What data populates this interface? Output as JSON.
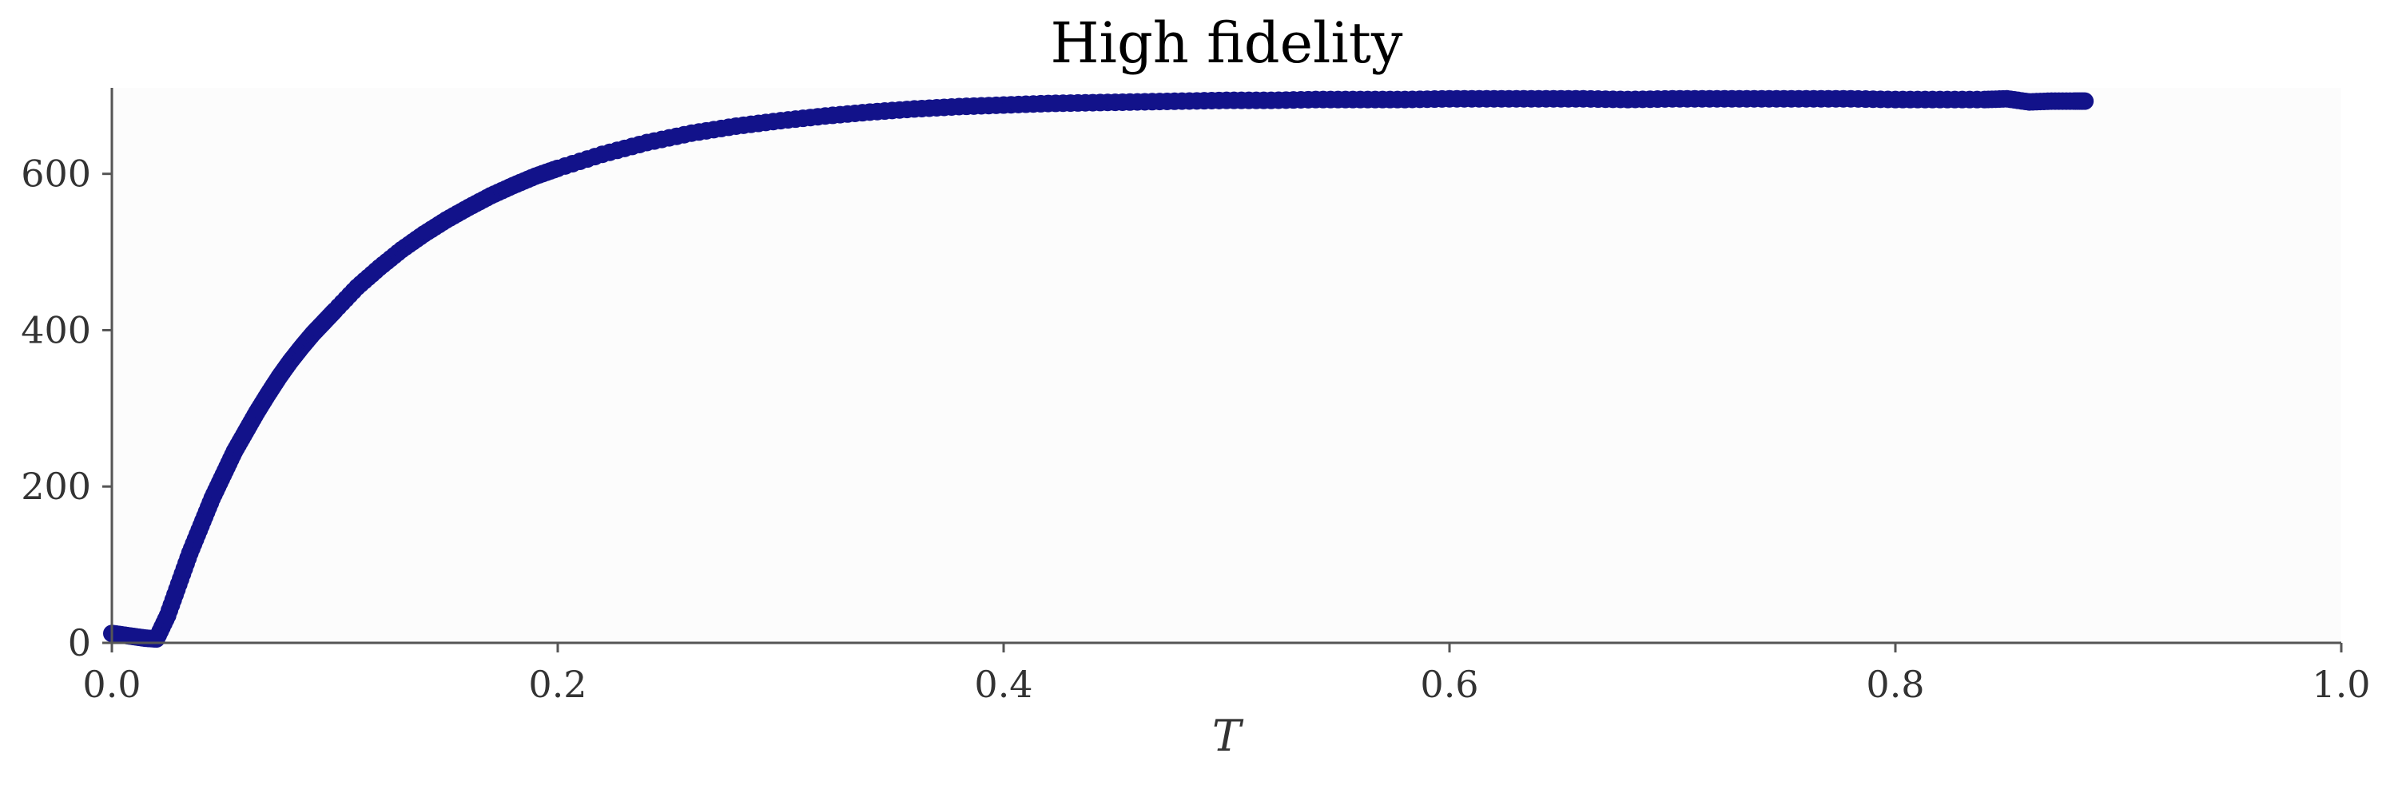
{
  "chart_data": {
    "type": "scatter",
    "title": "High fidelity",
    "xlabel": "T",
    "ylabel": "",
    "xlim": [
      0,
      1
    ],
    "ylim": [
      0,
      710
    ],
    "xticks": [
      {
        "value": 0.0,
        "label": "0.0"
      },
      {
        "value": 0.2,
        "label": "0.2"
      },
      {
        "value": 0.4,
        "label": "0.4"
      },
      {
        "value": 0.6,
        "label": "0.6"
      },
      {
        "value": 0.8,
        "label": "0.8"
      },
      {
        "value": 1.0,
        "label": "1.0"
      }
    ],
    "yticks": [
      {
        "value": 0,
        "label": "0"
      },
      {
        "value": 200,
        "label": "200"
      },
      {
        "value": 400,
        "label": "400"
      },
      {
        "value": 600,
        "label": "600"
      }
    ],
    "grid": false,
    "legend": "none",
    "colors": {
      "marker": "#12128a",
      "plot_background": "#fcfcfc"
    },
    "series": [
      {
        "x": [
          0.0,
          0.005,
          0.01,
          0.015,
          0.02,
          0.025,
          0.03,
          0.035,
          0.04,
          0.045,
          0.05,
          0.055,
          0.06,
          0.065,
          0.07,
          0.075,
          0.08,
          0.085,
          0.09,
          0.095,
          0.1,
          0.11,
          0.12,
          0.13,
          0.14,
          0.15,
          0.16,
          0.17,
          0.18,
          0.19,
          0.2,
          0.22,
          0.24,
          0.26,
          0.28,
          0.3,
          0.32,
          0.34,
          0.36,
          0.38,
          0.4,
          0.42,
          0.44,
          0.46,
          0.48,
          0.5,
          0.52,
          0.54,
          0.56,
          0.58,
          0.6,
          0.62,
          0.64,
          0.66,
          0.68,
          0.7,
          0.72,
          0.74,
          0.76,
          0.78,
          0.8,
          0.82,
          0.84,
          0.85,
          0.86,
          0.87,
          0.88,
          0.885
        ],
        "y": [
          12,
          10,
          8,
          6,
          5,
          35,
          75,
          115,
          150,
          185,
          215,
          245,
          270,
          295,
          318,
          340,
          360,
          378,
          395,
          410,
          425,
          455,
          480,
          503,
          523,
          541,
          557,
          572,
          585,
          597,
          607,
          625,
          640,
          652,
          661,
          668,
          674,
          679,
          683,
          686,
          688,
          690,
          691,
          692,
          693,
          694,
          694,
          695,
          695,
          695,
          696,
          696,
          696,
          696,
          695,
          696,
          696,
          696,
          696,
          696,
          695,
          695,
          695,
          696,
          692,
          693,
          693,
          693
        ]
      }
    ]
  }
}
